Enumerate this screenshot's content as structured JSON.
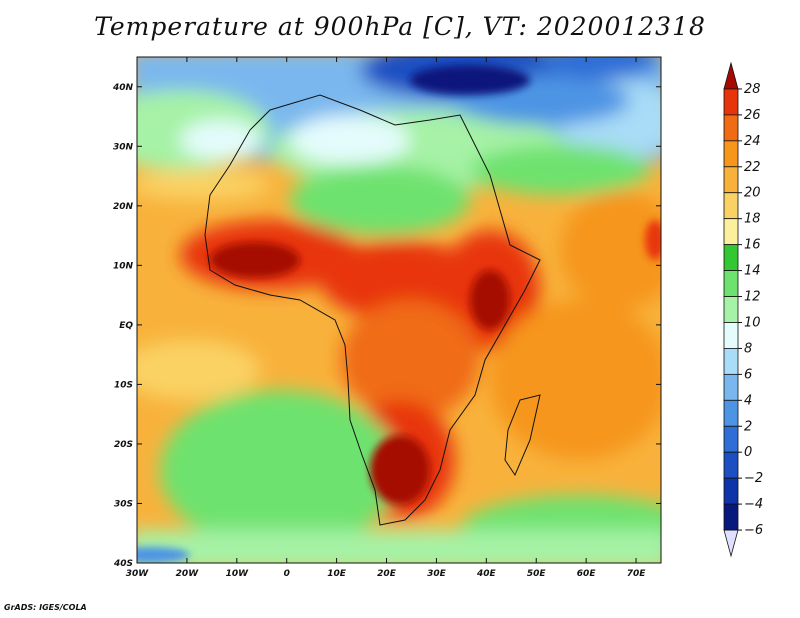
{
  "title": "Temperature at 900hPa [C], VT: 2020012318",
  "credit": "GrADS: IGES/COLA",
  "map": {
    "lon_range": [
      -30,
      75
    ],
    "lat_range": [
      -40,
      45
    ],
    "lon_ticks": [
      {
        "value": -30,
        "label": "30W"
      },
      {
        "value": -20,
        "label": "20W"
      },
      {
        "value": -10,
        "label": "10W"
      },
      {
        "value": 0,
        "label": "0"
      },
      {
        "value": 10,
        "label": "10E"
      },
      {
        "value": 20,
        "label": "20E"
      },
      {
        "value": 30,
        "label": "30E"
      },
      {
        "value": 40,
        "label": "40E"
      },
      {
        "value": 50,
        "label": "50E"
      },
      {
        "value": 60,
        "label": "60E"
      },
      {
        "value": 70,
        "label": "70E"
      }
    ],
    "lat_ticks": [
      {
        "value": 40,
        "label": "40N"
      },
      {
        "value": 30,
        "label": "30N"
      },
      {
        "value": 20,
        "label": "20N"
      },
      {
        "value": 10,
        "label": "10N"
      },
      {
        "value": 0,
        "label": "EQ"
      },
      {
        "value": -10,
        "label": "10S"
      },
      {
        "value": -20,
        "label": "20S"
      },
      {
        "value": -30,
        "label": "30S"
      },
      {
        "value": -40,
        "label": "40S"
      }
    ]
  },
  "colorbar": {
    "levels": [
      28,
      26,
      24,
      22,
      20,
      18,
      16,
      14,
      12,
      10,
      8,
      6,
      4,
      2,
      0,
      -2,
      -4,
      -6
    ],
    "labels": [
      "28",
      "26",
      "24",
      "22",
      "20",
      "18",
      "16",
      "14",
      "12",
      "10",
      "8",
      "6",
      "4",
      "2",
      "0",
      "−2",
      "−4",
      "−6"
    ],
    "colors": [
      "#a50a00",
      "#e8340b",
      "#f06c14",
      "#f6961c",
      "#f8b23c",
      "#fad264",
      "#fcf09c",
      "#34c734",
      "#6ee26e",
      "#a6f2a6",
      "#e4fcfc",
      "#a9dcf6",
      "#7ab7ee",
      "#4e94e4",
      "#2e6ed6",
      "#1b4fc2",
      "#0f33a8",
      "#07197c",
      "#dfe0ff"
    ]
  }
}
